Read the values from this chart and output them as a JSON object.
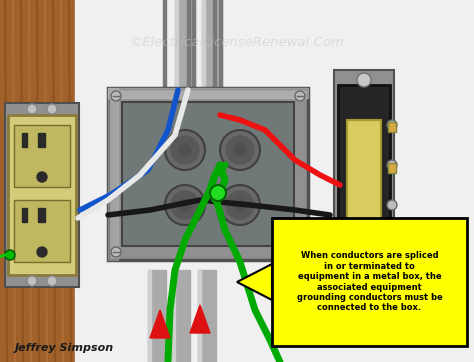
{
  "watermark": "©ElectricalLicenseRenewal.Com",
  "author": "Jeffrey Simpson",
  "callout_text": "When conductors are spliced\nin or terminated to\nequipment in a metal box, the\nassociated equipment\ngrounding conductors must be\nconnected to the box.",
  "callout_bg": "#FFFF00",
  "callout_border": "#000000",
  "callout_text_color": "#000000",
  "bg_color": "#FFFFFF",
  "watermark_color": "#C8C8C8",
  "author_color": "#1A1A1A",
  "wood_color": "#A0622A",
  "wood_mid": "#8B5020",
  "wood_dark": "#6B3A10",
  "wood_light": "#C8844A",
  "metal_box_outer": "#909090",
  "metal_box_inner": "#707878",
  "metal_box_face": "#888888",
  "metal_highlight": "#C8C8C8",
  "conduit_mid": "#AAAAAA",
  "conduit_light": "#D0D0D0",
  "conduit_dark": "#787878",
  "outlet_body": "#D4CC7A",
  "outlet_socket": "#C0B860",
  "outlet_slots": "#2A2A2A",
  "switch_bracket": "#909090",
  "switch_body": "#252525",
  "switch_paddle": "#D8CC60",
  "switch_screws": "#B0B0B0",
  "wire_red": "#EE1111",
  "wire_black": "#181818",
  "wire_white": "#E8E8E8",
  "wire_green": "#00AA00",
  "wire_blue": "#1155CC",
  "wire_green_dark": "#005500",
  "splice_dot": "#22DD22",
  "red_arrow": "#DD1111",
  "fig_width": 4.74,
  "fig_height": 3.62,
  "dpi": 100
}
